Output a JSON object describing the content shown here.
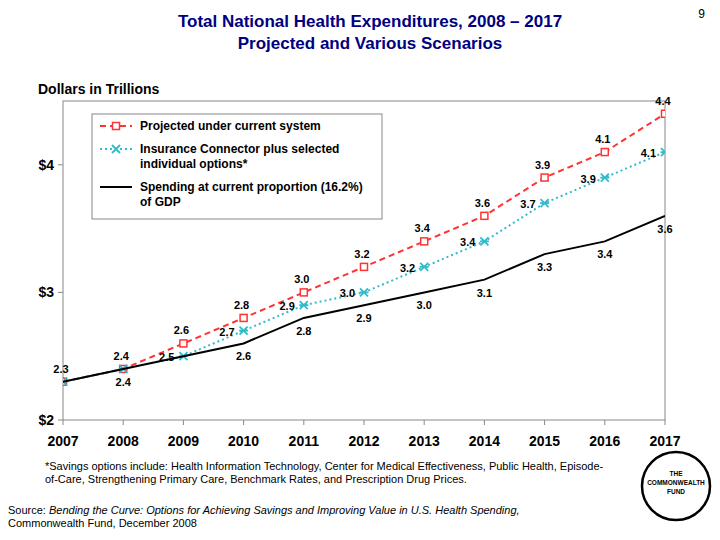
{
  "chart_data": {
    "type": "line",
    "title": "Total National Health Expenditures, 2008 – 2017",
    "subtitle": "Projected and Various Scenarios",
    "y_label": "Dollars in Trillions",
    "x": [
      2007,
      2008,
      2009,
      2010,
      2011,
      2012,
      2013,
      2014,
      2015,
      2016,
      2017
    ],
    "xlim": [
      2007,
      2017
    ],
    "xticks": [
      2007,
      2008,
      2009,
      2010,
      2011,
      2012,
      2013,
      2014,
      2015,
      2016,
      2017
    ],
    "ylim": [
      2,
      4.5
    ],
    "yticks": [
      {
        "value": 2,
        "label": "$2"
      },
      {
        "value": 3,
        "label": "$3"
      },
      {
        "value": 4,
        "label": "$4"
      }
    ],
    "grid": false,
    "legend": "upper left",
    "data_labels": true,
    "series": [
      {
        "name": "Projected under current system",
        "color": "#ff3333",
        "marker": "square",
        "line_style": "dashed",
        "values": [
          2.3,
          2.4,
          2.6,
          2.8,
          3.0,
          3.2,
          3.4,
          3.6,
          3.9,
          4.1,
          4.4
        ],
        "value_labels": [
          "2.3",
          "2.4",
          "2.6",
          "2.8",
          "3.0",
          "3.2",
          "3.4",
          "3.6",
          "3.9",
          "4.1",
          "4.4"
        ]
      },
      {
        "name": "Insurance Connector plus selected individual options*",
        "color": "#33bbcc",
        "marker": "x",
        "line_style": "dotted",
        "values": [
          2.3,
          2.4,
          2.5,
          2.7,
          2.9,
          3.0,
          3.2,
          3.4,
          3.7,
          3.9,
          4.1
        ],
        "value_labels": [
          null,
          null,
          "2.5",
          "2.7",
          "2.9",
          "3.0",
          "3.2",
          "3.4",
          "3.7",
          "3.9",
          "4.1"
        ]
      },
      {
        "name": "Spending at current proportion (16.2%) of GDP",
        "color": "#000000",
        "marker": "none",
        "line_style": "solid",
        "values": [
          2.3,
          2.4,
          2.5,
          2.6,
          2.8,
          2.9,
          3.0,
          3.1,
          3.3,
          3.4,
          3.6
        ],
        "value_labels": [
          null,
          "2.4",
          null,
          "2.6",
          "2.8",
          "2.9",
          "3.0",
          "3.1",
          "3.3",
          "3.4",
          "3.6"
        ]
      }
    ]
  },
  "page": {
    "number": "9",
    "footnote": "*Savings options include: Health Information Technology, Center for Medical Effectiveness, Public Health, Episode-of-Care, Strengthening Primary Care, Benchmark Rates, and Prescription Drug Prices.",
    "source_label": "Source:",
    "source": "Bending the Curve: Options for Achieving Savings and Improving Value in U.S. Health Spending,",
    "source_tail": "Commonwealth Fund, December 2008",
    "logo": [
      "THE",
      "COMMONWEALTH",
      "FUND"
    ]
  }
}
